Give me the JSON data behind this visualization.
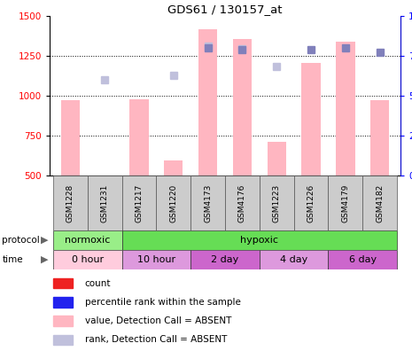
{
  "title": "GDS61 / 130157_at",
  "samples": [
    "GSM1228",
    "GSM1231",
    "GSM1217",
    "GSM1220",
    "GSM4173",
    "GSM4176",
    "GSM1223",
    "GSM1226",
    "GSM4179",
    "GSM4182"
  ],
  "bar_values": [
    970,
    500,
    980,
    595,
    1415,
    1355,
    710,
    1205,
    1340,
    975
  ],
  "absent_dot_values": [
    null,
    1100,
    null,
    1130,
    1310,
    1295,
    1185,
    null,
    null,
    null
  ],
  "rank_dots_right": [
    null,
    null,
    null,
    null,
    80,
    79,
    null,
    79,
    80,
    77
  ],
  "ylim_left": [
    500,
    1500
  ],
  "ylim_right": [
    0,
    100
  ],
  "yticks_left": [
    500,
    750,
    1000,
    1250,
    1500
  ],
  "yticks_right": [
    0,
    25,
    50,
    75,
    100
  ],
  "bar_color": "#FFB6C1",
  "absent_dot_color": "#C0C0DC",
  "rank_dot_color": "#8080BB",
  "grid_lines": [
    750,
    1000,
    1250
  ],
  "protocol_groups": [
    {
      "label": "normoxic",
      "start": 0,
      "end": 2,
      "color": "#99EE88"
    },
    {
      "label": "hypoxic",
      "start": 2,
      "end": 10,
      "color": "#66DD55"
    }
  ],
  "time_groups": [
    {
      "label": "0 hour",
      "start": 0,
      "end": 2,
      "color": "#FFCCDD"
    },
    {
      "label": "10 hour",
      "start": 2,
      "end": 4,
      "color": "#DD99DD"
    },
    {
      "label": "2 day",
      "start": 4,
      "end": 6,
      "color": "#CC66CC"
    },
    {
      "label": "4 day",
      "start": 6,
      "end": 8,
      "color": "#DD99DD"
    },
    {
      "label": "6 day",
      "start": 8,
      "end": 10,
      "color": "#CC66CC"
    }
  ],
  "legend_items": [
    {
      "label": "count",
      "color": "#EE2222"
    },
    {
      "label": "percentile rank within the sample",
      "color": "#2222EE"
    },
    {
      "label": "value, Detection Call = ABSENT",
      "color": "#FFB6C1"
    },
    {
      "label": "rank, Detection Call = ABSENT",
      "color": "#C0C0DC"
    }
  ]
}
